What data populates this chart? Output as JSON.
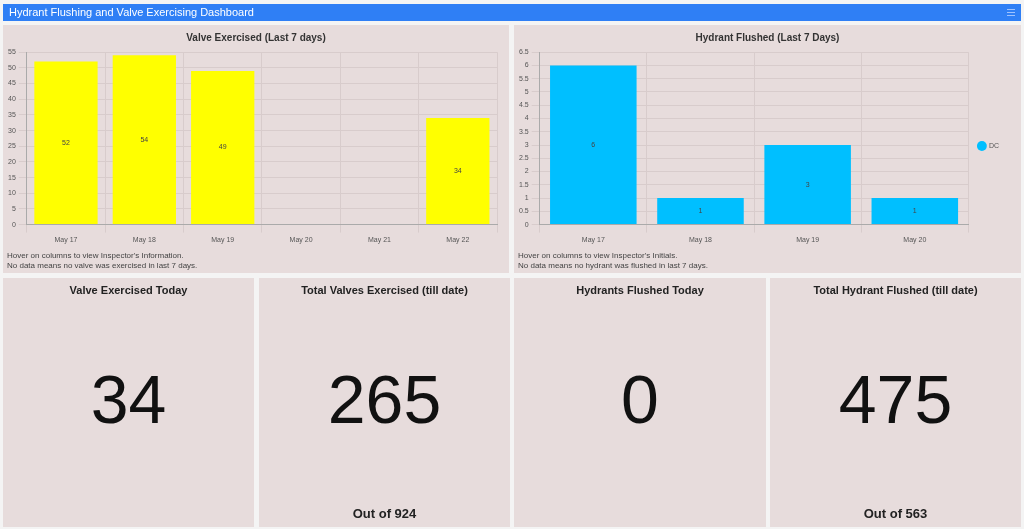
{
  "chart_data": [
    {
      "type": "other",
      "title": "Hydrant Flushing and Valve Exercising Dashboard"
    },
    {
      "type": "bar",
      "title": "Valve Exercised (Last 7 days)",
      "categories": [
        "May 17",
        "May 18",
        "May 19",
        "May 20",
        "May 21",
        "May 22"
      ],
      "series": [
        {
          "color": "#ffff00",
          "values": [
            52,
            54,
            49,
            null,
            null,
            34
          ]
        }
      ],
      "ylim": [
        0,
        55
      ],
      "yticks": [
        0,
        5,
        10,
        15,
        20,
        25,
        30,
        35,
        40,
        45,
        50,
        55
      ],
      "grid": true,
      "data_labels": true,
      "annotations": [
        "Hover on columns to view Inspector's Information.",
        "No data means no valve was exercised in last 7 days."
      ]
    },
    {
      "type": "bar",
      "title": "Hydrant Flushed (Last 7 Days)",
      "categories": [
        "May 17",
        "May 18",
        "May 19",
        "May 20"
      ],
      "series": [
        {
          "name": "DC",
          "color": "#00bfff",
          "values": [
            6,
            1,
            3,
            1
          ]
        }
      ],
      "ylim": [
        0,
        6.5
      ],
      "yticks": [
        0,
        0.5,
        1,
        1.5,
        2,
        2.5,
        3,
        3.5,
        4,
        4.5,
        5,
        5.5,
        6,
        6.5
      ],
      "grid": true,
      "data_labels": true,
      "legend": "right",
      "annotations": [
        "Hover on columns to view Inspector's Initials.",
        "No data means no hydrant was flushed in last 7 days."
      ]
    },
    {
      "type": "other",
      "title": "Valve Exercised Today",
      "values": [
        34
      ],
      "data_labels": true
    },
    {
      "type": "other",
      "title": "Total Valves Exercised (till date)",
      "values": [
        265
      ],
      "data_labels": true,
      "annotations": [
        "Out of 924"
      ]
    },
    {
      "type": "other",
      "title": "Hydrants Flushed Today",
      "values": [
        0
      ],
      "data_labels": true
    },
    {
      "type": "other",
      "title": "Total Hydrant Flushed (till date)",
      "values": [
        475
      ],
      "data_labels": true,
      "annotations": [
        "Out of 563"
      ]
    }
  ]
}
